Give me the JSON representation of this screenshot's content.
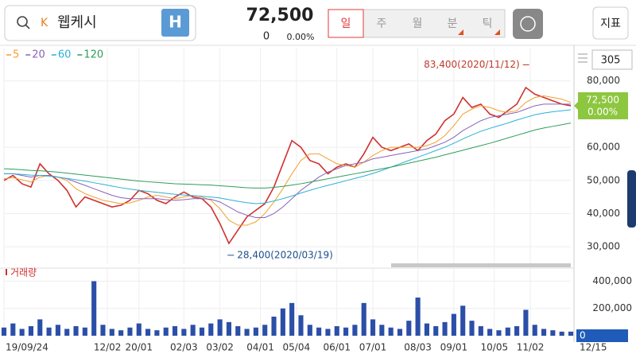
{
  "header": {
    "search": "웹케시",
    "market_badge": "K",
    "h_button": "H",
    "price": "72,500",
    "change": "0",
    "change_rate": "0.00%",
    "tabs": [
      "일",
      "주",
      "월",
      "분",
      "틱"
    ],
    "indicator_button": "지표",
    "count": "305"
  },
  "chart_data": [
    {
      "type": "line",
      "xlim": [
        0,
        63
      ],
      "ylim": [
        25000,
        90000
      ],
      "yticks": [
        {
          "value": 30000,
          "label": "30,000"
        },
        {
          "value": 40000,
          "label": "40,000"
        },
        {
          "value": 50000,
          "label": "50,000"
        },
        {
          "value": 60000,
          "label": "60,000"
        },
        {
          "value": 80000,
          "label": "80,000"
        }
      ],
      "xticks": [
        {
          "value": 0,
          "label": "19/09/24"
        },
        {
          "value": 11.5,
          "label": "12/02"
        },
        {
          "value": 15,
          "label": "20/01"
        },
        {
          "value": 20,
          "label": "02/03"
        },
        {
          "value": 24,
          "label": "03/02"
        },
        {
          "value": 28.5,
          "label": "04/01"
        },
        {
          "value": 32.5,
          "label": "05/04"
        },
        {
          "value": 37,
          "label": "06/01"
        },
        {
          "value": 41,
          "label": "07/01"
        },
        {
          "value": 46,
          "label": "08/03"
        },
        {
          "value": 50,
          "label": "09/01"
        },
        {
          "value": 54.5,
          "label": "10/05"
        },
        {
          "value": 58.5,
          "label": "11/02"
        },
        {
          "value": 65.5,
          "label": "12/15"
        }
      ],
      "grid": true,
      "price_tag": {
        "value": 72500,
        "label": "72,500",
        "change": "0.00%",
        "color": "#8dc63f"
      },
      "annotations": [
        {
          "text": "83,400(2020/11/12)",
          "x": 58.2,
          "y": 83400,
          "color": "#c0392b"
        },
        {
          "text": "28,400(2020/03/19)",
          "x": 24.5,
          "y": 28400,
          "color": "#1f4e8c"
        }
      ],
      "series": [
        {
          "color": "#d0312d",
          "values": [
            50000,
            51500,
            49000,
            48000,
            55000,
            52000,
            50000,
            47000,
            42000,
            45000,
            44000,
            43000,
            42000,
            42500,
            44000,
            47000,
            46000,
            44000,
            43000,
            45000,
            46500,
            45000,
            44500,
            42000,
            37000,
            31000,
            35000,
            39000,
            41000,
            43000,
            48000,
            55000,
            62000,
            60000,
            56000,
            55000,
            52000,
            54000,
            55000,
            54000,
            58000,
            63000,
            60000,
            59000,
            60000,
            61000,
            59000,
            62000,
            64000,
            68000,
            70000,
            75000,
            72000,
            73000,
            70000,
            69000,
            71000,
            73000,
            78000,
            76000,
            75000,
            74000,
            73000,
            72500
          ]
        },
        {
          "name": "5",
          "color": "#f0a030",
          "values": [
            50500,
            50800,
            50200,
            49500,
            51000,
            51500,
            51000,
            50000,
            47500,
            46000,
            45000,
            44000,
            43500,
            43000,
            43200,
            44000,
            45000,
            45500,
            45000,
            44500,
            45000,
            45500,
            45000,
            44000,
            41500,
            38000,
            36500,
            36500,
            37500,
            40000,
            43500,
            47500,
            52000,
            56000,
            58000,
            58000,
            56500,
            55000,
            54500,
            54000,
            55500,
            57500,
            59000,
            60000,
            60000,
            60000,
            60000,
            60500,
            61500,
            63500,
            66500,
            70000,
            71500,
            72500,
            72000,
            71000,
            70500,
            71000,
            73500,
            75000,
            75500,
            75000,
            74500,
            73500
          ]
        },
        {
          "name": "20",
          "color": "#8a63b8",
          "values": [
            52000,
            52000,
            51500,
            51000,
            51500,
            51500,
            51000,
            50500,
            49500,
            48500,
            47500,
            46500,
            45500,
            44800,
            44500,
            44500,
            44500,
            44500,
            44200,
            44000,
            44200,
            44500,
            44500,
            44300,
            43500,
            42000,
            40500,
            39500,
            38800,
            38800,
            40000,
            42000,
            44500,
            47000,
            49000,
            51000,
            52500,
            53500,
            54500,
            55000,
            55500,
            56500,
            57000,
            57500,
            58000,
            58500,
            59000,
            59500,
            60500,
            61500,
            63000,
            65000,
            66500,
            68000,
            69000,
            69500,
            70000,
            70500,
            71500,
            72500,
            73000,
            73000,
            73000,
            73000
          ]
        },
        {
          "name": "60",
          "color": "#2bb0d8",
          "values": [
            52000,
            52000,
            51800,
            51600,
            51500,
            51300,
            51000,
            50600,
            50200,
            49800,
            49300,
            48800,
            48300,
            47800,
            47400,
            47000,
            46700,
            46400,
            46100,
            45800,
            45600,
            45400,
            45200,
            45000,
            44700,
            44200,
            43700,
            43300,
            43000,
            43200,
            43800,
            44500,
            45300,
            46200,
            47000,
            47800,
            48500,
            49200,
            49900,
            50600,
            51300,
            52100,
            53000,
            54000,
            55000,
            56000,
            57000,
            58000,
            59000,
            60000,
            61200,
            62500,
            63700,
            64800,
            65700,
            66500,
            67300,
            68200,
            69000,
            69800,
            70300,
            70700,
            71000,
            71300
          ]
        },
        {
          "name": "120",
          "color": "#2e9e5a",
          "values": [
            53500,
            53400,
            53200,
            53000,
            52900,
            52700,
            52500,
            52200,
            51900,
            51600,
            51300,
            51000,
            50700,
            50400,
            50100,
            49800,
            49600,
            49400,
            49200,
            49000,
            48900,
            48800,
            48700,
            48600,
            48400,
            48200,
            48000,
            47800,
            47700,
            47700,
            47900,
            48200,
            48600,
            49000,
            49500,
            50000,
            50500,
            51000,
            51500,
            52000,
            52500,
            53000,
            53500,
            54000,
            54600,
            55200,
            55800,
            56400,
            57000,
            57700,
            58400,
            59100,
            59800,
            60500,
            61200,
            62000,
            62800,
            63600,
            64400,
            65200,
            65800,
            66300,
            66800,
            67300
          ]
        }
      ]
    },
    {
      "type": "bar",
      "title": "거래량",
      "xlim": [
        0,
        63
      ],
      "ylim": [
        0,
        490000
      ],
      "color": "#2b4fa8",
      "yticks": [
        {
          "value": 200000,
          "label": "200,000"
        },
        {
          "value": 400000,
          "label": "400,000"
        }
      ],
      "current": 0,
      "values": [
        60000,
        90000,
        50000,
        70000,
        120000,
        60000,
        80000,
        50000,
        70000,
        60000,
        400000,
        80000,
        50000,
        40000,
        60000,
        90000,
        50000,
        40000,
        60000,
        70000,
        50000,
        80000,
        60000,
        90000,
        120000,
        100000,
        70000,
        50000,
        60000,
        80000,
        140000,
        200000,
        240000,
        150000,
        80000,
        60000,
        50000,
        70000,
        60000,
        80000,
        240000,
        120000,
        80000,
        60000,
        50000,
        110000,
        280000,
        90000,
        70000,
        100000,
        160000,
        220000,
        110000,
        70000,
        50000,
        40000,
        60000,
        70000,
        190000,
        80000,
        50000,
        40000,
        30000,
        30000
      ]
    }
  ]
}
